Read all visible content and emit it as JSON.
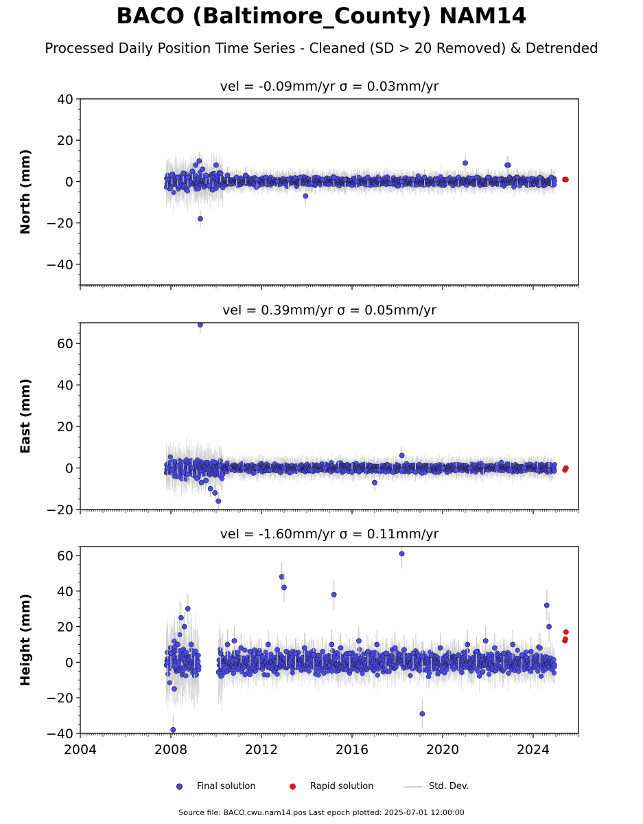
{
  "header": {
    "title": "BACO (Baltimore_County) NAM14",
    "subtitle": "Processed Daily Position Time Series - Cleaned (SD > 20 Removed) & Detrended"
  },
  "legend": {
    "final": "Final solution",
    "rapid": "Rapid solution",
    "std": "Std. Dev."
  },
  "footer": "Source file: BACO.cwu.nam14.pos  Last epoch plotted: 2025-07-01 12:00:00",
  "colors": {
    "final": "#4b4bf2",
    "rapid": "#e8161b",
    "std": "#c8c8c8",
    "edge": "#1a1a1a"
  },
  "chart_data": [
    {
      "type": "scatter",
      "title": "vel = -0.09mm/yr   σ = 0.03mm/yr",
      "ylabel": "North (mm)",
      "xlim": [
        2004,
        2026
      ],
      "ylim": [
        -50,
        40
      ],
      "yticks": [
        -40,
        -20,
        0,
        20,
        40
      ],
      "xticks": [
        2004,
        2008,
        2012,
        2016,
        2020,
        2024
      ],
      "series": [
        {
          "name": "Final solution",
          "x": [
            2007.85,
            2008.05,
            2008.3,
            2008.55,
            2008.75,
            2008.95,
            2009.1,
            2009.25,
            2009.4,
            2009.55,
            2009.7,
            2009.85,
            2010.0,
            2010.2,
            2010.5,
            2010.9,
            2011.3,
            2011.8,
            2012.2,
            2012.7,
            2013.2,
            2013.7,
            2014.2,
            2014.7,
            2015.2,
            2015.7,
            2016.2,
            2016.7,
            2017.2,
            2017.7,
            2018.2,
            2018.7,
            2019.2,
            2019.7,
            2020.2,
            2020.7,
            2021.0,
            2021.5,
            2022.0,
            2022.5,
            2022.9,
            2023.3,
            2023.8,
            2024.3,
            2024.8,
            2009.3,
            2013.95,
            2022.85
          ],
          "y": [
            1,
            3,
            2,
            4,
            2,
            5,
            8,
            10,
            6,
            3,
            -2,
            -4,
            8,
            4,
            3,
            2,
            3,
            1,
            2,
            0,
            1,
            2,
            -1,
            1,
            2,
            1,
            0,
            2,
            1,
            -1,
            0,
            1,
            2,
            1,
            1,
            2,
            9,
            2,
            2,
            1,
            8,
            2,
            1,
            2,
            2,
            -18,
            -7,
            8
          ]
        },
        {
          "name": "Rapid solution",
          "x": [
            2025.4,
            2025.45
          ],
          "y": [
            1,
            1
          ]
        }
      ]
    },
    {
      "type": "scatter",
      "title": "vel = 0.39mm/yr   σ = 0.05mm/yr",
      "ylabel": "East (mm)",
      "xlim": [
        2004,
        2026
      ],
      "ylim": [
        -20,
        70
      ],
      "yticks": [
        -20,
        0,
        20,
        40,
        60
      ],
      "xticks": [
        2004,
        2008,
        2012,
        2016,
        2020,
        2024
      ],
      "series": [
        {
          "name": "Final solution",
          "x": [
            2007.85,
            2008.05,
            2008.3,
            2008.55,
            2008.75,
            2008.95,
            2009.15,
            2009.35,
            2009.55,
            2009.75,
            2009.95,
            2010.15,
            2010.6,
            2011.2,
            2011.8,
            2012.4,
            2013.0,
            2013.6,
            2014.2,
            2014.8,
            2015.4,
            2016.0,
            2016.6,
            2017.2,
            2017.8,
            2018.2,
            2018.8,
            2019.4,
            2020.0,
            2020.6,
            2021.2,
            2021.8,
            2022.4,
            2023.0,
            2023.6,
            2024.2,
            2024.7,
            2009.3,
            2018.2,
            2017.0,
            2010.1
          ],
          "y": [
            0,
            -1,
            1,
            -2,
            -3,
            0,
            -5,
            -7,
            -6,
            -10,
            -12,
            1,
            0,
            0,
            0,
            -1,
            0,
            0,
            -1,
            0,
            -1,
            -2,
            -1,
            -1,
            -2,
            -1,
            -2,
            -1,
            0,
            -1,
            0,
            1,
            0,
            -1,
            0,
            -1,
            -1,
            69,
            6,
            -7,
            -16
          ]
        },
        {
          "name": "Rapid solution",
          "x": [
            2025.4,
            2025.45
          ],
          "y": [
            -1,
            0
          ]
        }
      ]
    },
    {
      "type": "scatter",
      "title": "vel = -1.60mm/yr   σ = 0.11mm/yr",
      "ylabel": "Height (mm)",
      "xlim": [
        2004,
        2026
      ],
      "ylim": [
        -40,
        65
      ],
      "yticks": [
        -40,
        -20,
        0,
        20,
        40,
        60
      ],
      "xticks": [
        2004,
        2008,
        2012,
        2016,
        2020,
        2024
      ],
      "series": [
        {
          "name": "Final solution",
          "x": [
            2007.85,
            2008.0,
            2008.15,
            2008.3,
            2008.45,
            2008.6,
            2008.75,
            2008.9,
            2009.05,
            2010.2,
            2010.5,
            2010.8,
            2011.1,
            2011.5,
            2011.9,
            2012.3,
            2012.7,
            2013.1,
            2013.5,
            2013.9,
            2014.3,
            2014.7,
            2015.1,
            2015.5,
            2015.9,
            2016.3,
            2016.7,
            2017.1,
            2017.5,
            2017.9,
            2018.3,
            2018.7,
            2019.1,
            2019.5,
            2019.9,
            2020.3,
            2020.7,
            2021.1,
            2021.5,
            2021.9,
            2022.3,
            2022.7,
            2023.1,
            2023.5,
            2023.9,
            2024.3,
            2024.7,
            2012.9,
            2013.0,
            2018.2,
            2008.1,
            2019.1,
            2024.6,
            2015.2
          ],
          "y": [
            0,
            5,
            -15,
            10,
            25,
            20,
            30,
            10,
            -5,
            5,
            10,
            12,
            8,
            6,
            5,
            10,
            7,
            6,
            5,
            8,
            4,
            6,
            10,
            8,
            5,
            12,
            6,
            10,
            5,
            8,
            7,
            5,
            3,
            4,
            8,
            0,
            4,
            10,
            6,
            12,
            8,
            5,
            10,
            4,
            6,
            8,
            20,
            48,
            42,
            61,
            -38,
            -29,
            32,
            38
          ]
        },
        {
          "name": "Rapid solution",
          "x": [
            2025.4,
            2025.42,
            2025.45
          ],
          "y": [
            12,
            13,
            17
          ]
        }
      ]
    }
  ]
}
